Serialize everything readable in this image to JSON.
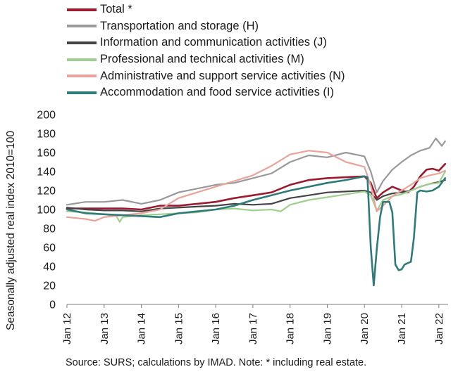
{
  "chart_data": {
    "type": "line",
    "ylabel": "Seasonally adjusted real index 2010=100",
    "xlabel": "",
    "ylim": [
      0,
      200
    ],
    "yticks": [
      0,
      20,
      40,
      60,
      80,
      100,
      120,
      140,
      160,
      180,
      200
    ],
    "xlim": [
      2012.0,
      2022.25
    ],
    "xtick_positions": [
      2012,
      2013,
      2014,
      2015,
      2016,
      2017,
      2018,
      2019,
      2020,
      2021,
      2022
    ],
    "xtick_labels": [
      "Jan 12",
      "Jan 13",
      "Jan 14",
      "Jan 15",
      "Jan 16",
      "Jan 17",
      "Jan 18",
      "Jan 19",
      "Jan 20",
      "Jan 21",
      "Jan 22"
    ],
    "grid": false,
    "legend_position": "top",
    "series": [
      {
        "name": "Total *",
        "color": "#9b1b30",
        "width": 2.6,
        "points": [
          [
            2012.0,
            101
          ],
          [
            2013.0,
            101
          ],
          [
            2013.5,
            101
          ],
          [
            2014.0,
            100
          ],
          [
            2014.5,
            104
          ],
          [
            2015.0,
            104
          ],
          [
            2015.5,
            106
          ],
          [
            2016.0,
            108
          ],
          [
            2016.5,
            112
          ],
          [
            2017.0,
            115
          ],
          [
            2017.5,
            118
          ],
          [
            2018.0,
            126
          ],
          [
            2018.5,
            131
          ],
          [
            2019.0,
            133
          ],
          [
            2019.5,
            134
          ],
          [
            2020.0,
            135
          ],
          [
            2020.17,
            128
          ],
          [
            2020.33,
            112
          ],
          [
            2020.5,
            118
          ],
          [
            2020.75,
            124
          ],
          [
            2021.0,
            120
          ],
          [
            2021.17,
            118
          ],
          [
            2021.33,
            124
          ],
          [
            2021.5,
            135
          ],
          [
            2021.67,
            142
          ],
          [
            2021.83,
            143
          ],
          [
            2022.0,
            141
          ],
          [
            2022.17,
            148
          ]
        ]
      },
      {
        "name": "Transportation and storage (H)",
        "color": "#999999",
        "width": 2.2,
        "points": [
          [
            2012.0,
            105
          ],
          [
            2012.5,
            108
          ],
          [
            2013.0,
            108
          ],
          [
            2013.5,
            110
          ],
          [
            2014.0,
            106
          ],
          [
            2014.5,
            110
          ],
          [
            2015.0,
            118
          ],
          [
            2015.5,
            122
          ],
          [
            2016.0,
            126
          ],
          [
            2016.5,
            128
          ],
          [
            2017.0,
            133
          ],
          [
            2017.5,
            138
          ],
          [
            2018.0,
            150
          ],
          [
            2018.5,
            157
          ],
          [
            2019.0,
            155
          ],
          [
            2019.5,
            160
          ],
          [
            2020.0,
            156
          ],
          [
            2020.17,
            140
          ],
          [
            2020.33,
            118
          ],
          [
            2020.5,
            130
          ],
          [
            2020.75,
            142
          ],
          [
            2021.0,
            150
          ],
          [
            2021.25,
            157
          ],
          [
            2021.5,
            162
          ],
          [
            2021.75,
            165
          ],
          [
            2021.92,
            175
          ],
          [
            2022.08,
            167
          ],
          [
            2022.17,
            172
          ]
        ]
      },
      {
        "name": "Information and communication activities (J)",
        "color": "#444444",
        "width": 2.2,
        "points": [
          [
            2012.0,
            102
          ],
          [
            2012.5,
            100
          ],
          [
            2013.0,
            99
          ],
          [
            2013.5,
            99
          ],
          [
            2014.0,
            98
          ],
          [
            2014.5,
            101
          ],
          [
            2015.0,
            102
          ],
          [
            2015.5,
            103
          ],
          [
            2016.0,
            104
          ],
          [
            2016.5,
            106
          ],
          [
            2017.0,
            105
          ],
          [
            2017.5,
            106
          ],
          [
            2018.0,
            112
          ],
          [
            2018.5,
            115
          ],
          [
            2019.0,
            118
          ],
          [
            2019.5,
            119
          ],
          [
            2020.0,
            120
          ],
          [
            2020.17,
            118
          ],
          [
            2020.33,
            110
          ],
          [
            2020.5,
            114
          ],
          [
            2020.75,
            117
          ],
          [
            2021.0,
            118
          ],
          [
            2021.25,
            120
          ],
          [
            2021.5,
            124
          ],
          [
            2021.75,
            127
          ],
          [
            2022.0,
            129
          ],
          [
            2022.17,
            131
          ]
        ]
      },
      {
        "name": "Professional and technical activities (M)",
        "color": "#9fcf90",
        "width": 2.2,
        "points": [
          [
            2012.0,
            98
          ],
          [
            2012.5,
            97
          ],
          [
            2013.0,
            95
          ],
          [
            2013.33,
            93
          ],
          [
            2013.42,
            87
          ],
          [
            2013.5,
            92
          ],
          [
            2014.0,
            94
          ],
          [
            2014.5,
            95
          ],
          [
            2015.0,
            96
          ],
          [
            2015.5,
            97
          ],
          [
            2016.0,
            100
          ],
          [
            2016.5,
            101
          ],
          [
            2017.0,
            99
          ],
          [
            2017.5,
            100
          ],
          [
            2017.75,
            98
          ],
          [
            2018.0,
            105
          ],
          [
            2018.5,
            110
          ],
          [
            2019.0,
            113
          ],
          [
            2019.5,
            116
          ],
          [
            2020.0,
            119
          ],
          [
            2020.17,
            115
          ],
          [
            2020.33,
            99
          ],
          [
            2020.5,
            110
          ],
          [
            2020.75,
            114
          ],
          [
            2021.0,
            116
          ],
          [
            2021.25,
            120
          ],
          [
            2021.5,
            124
          ],
          [
            2021.75,
            127
          ],
          [
            2022.0,
            128
          ],
          [
            2022.17,
            140
          ]
        ]
      },
      {
        "name": "Administrative and support service activities (N)",
        "color": "#e9a39a",
        "width": 2.2,
        "points": [
          [
            2012.0,
            92
          ],
          [
            2012.5,
            90
          ],
          [
            2012.75,
            88
          ],
          [
            2013.0,
            92
          ],
          [
            2013.5,
            94
          ],
          [
            2014.0,
            96
          ],
          [
            2014.5,
            100
          ],
          [
            2015.0,
            112
          ],
          [
            2015.5,
            118
          ],
          [
            2016.0,
            124
          ],
          [
            2016.5,
            130
          ],
          [
            2017.0,
            136
          ],
          [
            2017.5,
            146
          ],
          [
            2018.0,
            158
          ],
          [
            2018.5,
            162
          ],
          [
            2019.0,
            160
          ],
          [
            2019.5,
            150
          ],
          [
            2020.0,
            145
          ],
          [
            2020.17,
            125
          ],
          [
            2020.33,
            98
          ],
          [
            2020.5,
            104
          ],
          [
            2020.75,
            114
          ],
          [
            2021.0,
            120
          ],
          [
            2021.25,
            126
          ],
          [
            2021.5,
            133
          ],
          [
            2021.75,
            136
          ],
          [
            2022.0,
            138
          ],
          [
            2022.17,
            141
          ]
        ]
      },
      {
        "name": "Accommodation and food service activities (I)",
        "color": "#2e7b7a",
        "width": 2.6,
        "points": [
          [
            2012.0,
            100
          ],
          [
            2012.5,
            96
          ],
          [
            2013.0,
            95
          ],
          [
            2013.5,
            94
          ],
          [
            2014.0,
            93
          ],
          [
            2014.5,
            92
          ],
          [
            2015.0,
            96
          ],
          [
            2015.5,
            98
          ],
          [
            2016.0,
            100
          ],
          [
            2016.5,
            104
          ],
          [
            2017.0,
            110
          ],
          [
            2017.5,
            115
          ],
          [
            2018.0,
            120
          ],
          [
            2018.5,
            124
          ],
          [
            2019.0,
            128
          ],
          [
            2019.5,
            131
          ],
          [
            2020.0,
            135
          ],
          [
            2020.08,
            134
          ],
          [
            2020.17,
            60
          ],
          [
            2020.25,
            20
          ],
          [
            2020.33,
            58
          ],
          [
            2020.42,
            92
          ],
          [
            2020.5,
            108
          ],
          [
            2020.67,
            108
          ],
          [
            2020.75,
            97
          ],
          [
            2020.83,
            42
          ],
          [
            2020.92,
            36
          ],
          [
            2021.0,
            37
          ],
          [
            2021.08,
            42
          ],
          [
            2021.25,
            45
          ],
          [
            2021.33,
            70
          ],
          [
            2021.42,
            118
          ],
          [
            2021.5,
            120
          ],
          [
            2021.67,
            119
          ],
          [
            2021.83,
            120
          ],
          [
            2022.0,
            124
          ],
          [
            2022.17,
            133
          ]
        ]
      }
    ]
  },
  "source_note": "Source:  SURS; calculations by IMAD. Note: * including real estate."
}
